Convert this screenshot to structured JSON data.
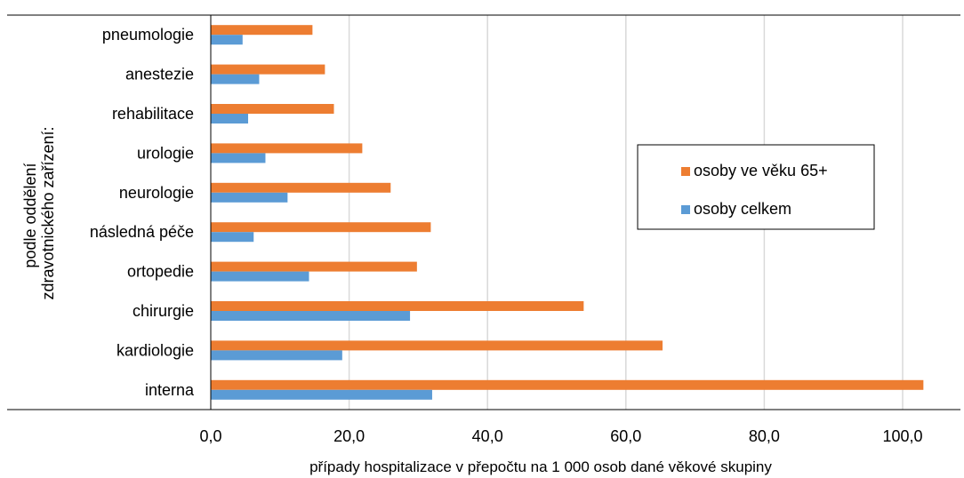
{
  "chart_data": {
    "type": "bar",
    "orientation": "horizontal",
    "categories": [
      "pneumologie",
      "anestezie",
      "rehabilitace",
      "urologie",
      "neurologie",
      "následná péče",
      "ortopedie",
      "chirurgie",
      "kardiologie",
      "interna"
    ],
    "series": [
      {
        "name": "osoby ve věku 65+",
        "color": "#ED7D31",
        "values": [
          14.7,
          16.5,
          17.8,
          21.9,
          26.0,
          31.8,
          29.8,
          53.9,
          65.3,
          103.0
        ]
      },
      {
        "name": "osoby celkem",
        "color": "#5B9BD5",
        "values": [
          4.6,
          7.0,
          5.4,
          7.9,
          11.1,
          6.2,
          14.2,
          28.8,
          19.0,
          32.0
        ]
      }
    ],
    "xlim": [
      0,
      108
    ],
    "xticks": [
      0,
      20,
      40,
      60,
      80,
      100
    ],
    "xtick_labels": [
      "0,0",
      "20,0",
      "40,0",
      "60,0",
      "80,0",
      "100,0"
    ],
    "xlabel": "případy hospitalizace v přepočtu na 1 000 osob dané věkové skupiny",
    "ylabel_lines": [
      "podle oddělení",
      "zdravotnického zařízení:"
    ],
    "grid": "vertical",
    "legend_position": "right"
  }
}
